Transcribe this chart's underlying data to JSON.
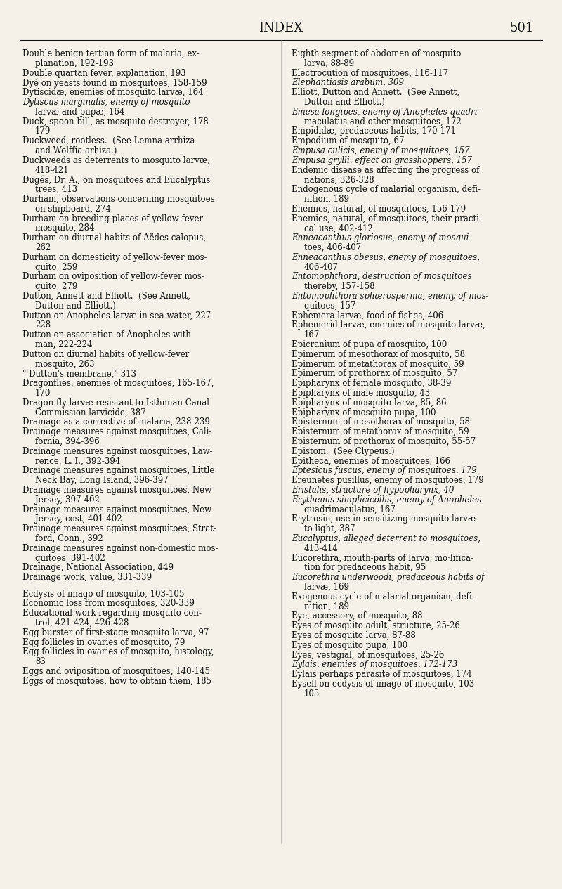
{
  "background_color": "#f5f0e8",
  "page_title": "INDEX",
  "page_number": "501",
  "title_fontsize": 13,
  "body_fontsize": 8.5,
  "left_column_entries": [
    {
      "text": "Double benign tertian form of malaria, ex-",
      "italic": false,
      "indent": false
    },
    {
      "text": "planation, 192-193",
      "italic": false,
      "indent": true
    },
    {
      "text": "Double quartan fever, explanation, 193",
      "italic": false,
      "indent": false
    },
    {
      "text": "Dyé on yeasts found in mosquitoes, 158-159",
      "italic": false,
      "indent": false
    },
    {
      "text": "Dytiscidæ, enemies of mosquito larvæ, 164",
      "italic": false,
      "indent": false
    },
    {
      "text": "Dytiscus marginalis, enemy of mosquito",
      "italic": true,
      "indent": false
    },
    {
      "text": "larvæ and pupæ, 164",
      "italic": false,
      "indent": true
    },
    {
      "text": "Duck, spoon-bill, as mosquito destroyer, 178-",
      "italic": false,
      "indent": false
    },
    {
      "text": "179",
      "italic": false,
      "indent": true
    },
    {
      "text": "Duckweed, rootless.  (See Lemna arrhiza",
      "italic": false,
      "indent": false
    },
    {
      "text": "and Wolffia arhiza.)",
      "italic": false,
      "indent": true
    },
    {
      "text": "Duckweeds as deterrents to mosquito larvæ,",
      "italic": false,
      "indent": false
    },
    {
      "text": "418-421",
      "italic": false,
      "indent": true
    },
    {
      "text": "Dugés, Dr. A., on mosquitoes and Eucalyptus",
      "italic": false,
      "indent": false
    },
    {
      "text": "trees, 413",
      "italic": false,
      "indent": true
    },
    {
      "text": "Durham, observations concerning mosquitoes",
      "italic": false,
      "indent": false
    },
    {
      "text": "on shipboard, 274",
      "italic": false,
      "indent": true
    },
    {
      "text": "Durham on breeding places of yellow-fever",
      "italic": false,
      "indent": false
    },
    {
      "text": "mosquito, 284",
      "italic": false,
      "indent": true
    },
    {
      "text": "Durham on diurnal habits of Aëdes calopus,",
      "italic": false,
      "indent": false
    },
    {
      "text": "262",
      "italic": false,
      "indent": true
    },
    {
      "text": "Durham on domesticity of yellow-fever mos-",
      "italic": false,
      "indent": false
    },
    {
      "text": "quito, 259",
      "italic": false,
      "indent": true
    },
    {
      "text": "Durham on oviposition of yellow-fever mos-",
      "italic": false,
      "indent": false
    },
    {
      "text": "quito, 279",
      "italic": false,
      "indent": true
    },
    {
      "text": "Dutton, Annett and Elliott.  (See Annett,",
      "italic": false,
      "indent": false
    },
    {
      "text": "Dutton and Elliott.)",
      "italic": false,
      "indent": true
    },
    {
      "text": "Dutton on Anopheles larvæ in sea-water, 227-",
      "italic": false,
      "indent": false
    },
    {
      "text": "228",
      "italic": false,
      "indent": true
    },
    {
      "text": "Dutton on association of Anopheles with",
      "italic": false,
      "indent": false
    },
    {
      "text": "man, 222-224",
      "italic": false,
      "indent": true
    },
    {
      "text": "Dutton on diurnal habits of yellow-fever",
      "italic": false,
      "indent": false
    },
    {
      "text": "mosquito, 263",
      "italic": false,
      "indent": true
    },
    {
      "text": "\" Dutton's membrane,\" 313",
      "italic": false,
      "indent": false
    },
    {
      "text": "Dragonflies, enemies of mosquitoes, 165-167,",
      "italic": false,
      "indent": false
    },
    {
      "text": "170",
      "italic": false,
      "indent": true
    },
    {
      "text": "Dragon-fly larvæ resistant to Isthmian Canal",
      "italic": false,
      "indent": false
    },
    {
      "text": "Commission larvicide, 387",
      "italic": false,
      "indent": true
    },
    {
      "text": "Drainage as a corrective of malaria, 238-239",
      "italic": false,
      "indent": false
    },
    {
      "text": "Drainage measures against mosquitoes, Cali-",
      "italic": false,
      "indent": false
    },
    {
      "text": "fornia, 394-396",
      "italic": false,
      "indent": true
    },
    {
      "text": "Drainage measures against mosquitoes, Law-",
      "italic": false,
      "indent": false
    },
    {
      "text": "rence, L. I., 392-394",
      "italic": false,
      "indent": true
    },
    {
      "text": "Drainage measures against mosquitoes, Little",
      "italic": false,
      "indent": false
    },
    {
      "text": "Neck Bay, Long Island, 396-397",
      "italic": false,
      "indent": true
    },
    {
      "text": "Drainage measures against mosquitoes, New",
      "italic": false,
      "indent": false
    },
    {
      "text": "Jersey, 397-402",
      "italic": false,
      "indent": true
    },
    {
      "text": "Drainage measures against mosquitoes, New",
      "italic": false,
      "indent": false
    },
    {
      "text": "Jersey, cost, 401-402",
      "italic": false,
      "indent": true
    },
    {
      "text": "Drainage measures against mosquitoes, Strat-",
      "italic": false,
      "indent": false
    },
    {
      "text": "ford, Conn., 392",
      "italic": false,
      "indent": true
    },
    {
      "text": "Drainage measures against non-domestic mos-",
      "italic": false,
      "indent": false
    },
    {
      "text": "quitoes, 391-402",
      "italic": false,
      "indent": true
    },
    {
      "text": "Drainage, National Association, 449",
      "italic": false,
      "indent": false
    },
    {
      "text": "Drainage work, value, 331-339",
      "italic": false,
      "indent": false
    },
    {
      "text": "",
      "italic": false,
      "indent": false
    },
    {
      "text": "Ecdysis of imago of mosquito, 103-105",
      "italic": false,
      "indent": false
    },
    {
      "text": "Economic loss from mosquitoes, 320-339",
      "italic": false,
      "indent": false
    },
    {
      "text": "Educational work regarding mosquito con-",
      "italic": false,
      "indent": false
    },
    {
      "text": "trol, 421-424, 426-428",
      "italic": false,
      "indent": true
    },
    {
      "text": "Egg burster of first-stage mosquito larva, 97",
      "italic": false,
      "indent": false
    },
    {
      "text": "Egg follicles in ovaries of mosquito, 79",
      "italic": false,
      "indent": false
    },
    {
      "text": "Egg follicles in ovaries of mosquito, histology,",
      "italic": false,
      "indent": false
    },
    {
      "text": "83",
      "italic": false,
      "indent": true
    },
    {
      "text": "Eggs and oviposition of mosquitoes, 140-145",
      "italic": false,
      "indent": false
    },
    {
      "text": "Eggs of mosquitoes, how to obtain them, 185",
      "italic": false,
      "indent": false
    }
  ],
  "right_column_entries": [
    {
      "text": "Eighth segment of abdomen of mosquito",
      "italic": false,
      "indent": false
    },
    {
      "text": "larva, 88-89",
      "italic": false,
      "indent": true
    },
    {
      "text": "Electrocution of mosquitoes, 116-117",
      "italic": false,
      "indent": false
    },
    {
      "text": "Elephantiasis arabum, 309",
      "italic": true,
      "indent": false
    },
    {
      "text": "Elliott, Dutton and Annett.  (See Annett,",
      "italic": false,
      "indent": false
    },
    {
      "text": "Dutton and Elliott.)",
      "italic": false,
      "indent": true
    },
    {
      "text": "Emesa longipes, enemy of Anopheles quadri-",
      "italic": true,
      "indent": false
    },
    {
      "text": "maculatus and other mosquitoes, 172",
      "italic": false,
      "indent": true
    },
    {
      "text": "Empididæ, predaceous habits, 170-171",
      "italic": false,
      "indent": false
    },
    {
      "text": "Empodium of mosquito, 67",
      "italic": false,
      "indent": false
    },
    {
      "text": "Empusa culicis, enemy of mosquitoes, 157",
      "italic": true,
      "indent": false
    },
    {
      "text": "Empusa grylli, effect on grasshoppers, 157",
      "italic": true,
      "indent": false
    },
    {
      "text": "Endemic disease as affecting the progress of",
      "italic": false,
      "indent": false
    },
    {
      "text": "nations, 326-328",
      "italic": false,
      "indent": true
    },
    {
      "text": "Endogenous cycle of malarial organism, defi-",
      "italic": false,
      "indent": false
    },
    {
      "text": "nition, 189",
      "italic": false,
      "indent": true
    },
    {
      "text": "Enemies, natural, of mosquitoes, 156-179",
      "italic": false,
      "indent": false
    },
    {
      "text": "Enemies, natural, of mosquitoes, their practi-",
      "italic": false,
      "indent": false
    },
    {
      "text": "cal use, 402-412",
      "italic": false,
      "indent": true
    },
    {
      "text": "Enneacanthus gloriosus, enemy of mosqui-",
      "italic": true,
      "indent": false
    },
    {
      "text": "toes, 406-407",
      "italic": false,
      "indent": true
    },
    {
      "text": "Enneacanthus obesus, enemy of mosquitoes,",
      "italic": true,
      "indent": false
    },
    {
      "text": "406-407",
      "italic": false,
      "indent": true
    },
    {
      "text": "Entomophthora, destruction of mosquitoes",
      "italic": true,
      "indent": false
    },
    {
      "text": "thereby, 157-158",
      "italic": false,
      "indent": true
    },
    {
      "text": "Entomophthora sphærosperma, enemy of mos-",
      "italic": true,
      "indent": false
    },
    {
      "text": "quitoes, 157",
      "italic": false,
      "indent": true
    },
    {
      "text": "Ephemera larvæ, food of fishes, 406",
      "italic": false,
      "indent": false
    },
    {
      "text": "Ephemerid larvæ, enemies of mosquito larvæ,",
      "italic": false,
      "indent": false
    },
    {
      "text": "167",
      "italic": false,
      "indent": true
    },
    {
      "text": "Epicranium of pupa of mosquito, 100",
      "italic": false,
      "indent": false
    },
    {
      "text": "Epimerum of mesothorax of mosquito, 58",
      "italic": false,
      "indent": false
    },
    {
      "text": "Epimerum of metathorax of mosquito, 59",
      "italic": false,
      "indent": false
    },
    {
      "text": "Epimerum of prothorax of mosquito, 57",
      "italic": false,
      "indent": false
    },
    {
      "text": "Epipharynx of female mosquito, 38-39",
      "italic": false,
      "indent": false
    },
    {
      "text": "Epipharynx of male mosquito, 43",
      "italic": false,
      "indent": false
    },
    {
      "text": "Epipharynx of mosquito larva, 85, 86",
      "italic": false,
      "indent": false
    },
    {
      "text": "Epipharynx of mosquito pupa, 100",
      "italic": false,
      "indent": false
    },
    {
      "text": "Episternum of mesothorax of mosquito, 58",
      "italic": false,
      "indent": false
    },
    {
      "text": "Episternum of metathorax of mosquito, 59",
      "italic": false,
      "indent": false
    },
    {
      "text": "Episternum of prothorax of mosquito, 55-57",
      "italic": false,
      "indent": false
    },
    {
      "text": "Epistom.  (See Clypeus.)",
      "italic": false,
      "indent": false
    },
    {
      "text": "Epitheca, enemies of mosquitoes, 166",
      "italic": false,
      "indent": false
    },
    {
      "text": "Eptesicus fuscus, enemy of mosquitoes, 179",
      "italic": true,
      "indent": false
    },
    {
      "text": "Ereunetes pusillus, enemy of mosquitoes, 179",
      "italic": false,
      "indent": false
    },
    {
      "text": "Eristalis, structure of hypopharynx, 40",
      "italic": true,
      "indent": false
    },
    {
      "text": "Erythemis simplicicollis, enemy of Anopheles",
      "italic": true,
      "indent": false
    },
    {
      "text": "quadrimaculatus, 167",
      "italic": false,
      "indent": true
    },
    {
      "text": "Erytrosin, use in sensitizing mosquito larvæ",
      "italic": false,
      "indent": false
    },
    {
      "text": "to light, 387",
      "italic": false,
      "indent": true
    },
    {
      "text": "Eucalyptus, alleged deterrent to mosquitoes,",
      "italic": true,
      "indent": false
    },
    {
      "text": "413-414",
      "italic": false,
      "indent": true
    },
    {
      "text": "Eucorethra, mouth-parts of larva, mo·lifica-",
      "italic": false,
      "indent": false
    },
    {
      "text": "tion for predaceous habit, 95",
      "italic": false,
      "indent": true
    },
    {
      "text": "Eucorethra underwoodi, predaceous habits of",
      "italic": true,
      "indent": false
    },
    {
      "text": "larvæ, 169",
      "italic": false,
      "indent": true
    },
    {
      "text": "Exogenous cycle of malarial organism, defi-",
      "italic": false,
      "indent": false
    },
    {
      "text": "nition, 189",
      "italic": false,
      "indent": true
    },
    {
      "text": "Eye, accessory, of mosquito, 88",
      "italic": false,
      "indent": false
    },
    {
      "text": "Eyes of mosquito adult, structure, 25-26",
      "italic": false,
      "indent": false
    },
    {
      "text": "Eyes of mosquito larva, 87-88",
      "italic": false,
      "indent": false
    },
    {
      "text": "Eyes of mosquito pupa, 100",
      "italic": false,
      "indent": false
    },
    {
      "text": "Eyes, vestigial, of mosquitoes, 25-26",
      "italic": false,
      "indent": false
    },
    {
      "text": "Eylais, enemies of mosquitoes, 172-173",
      "italic": true,
      "indent": false
    },
    {
      "text": "Eylais perhaps parasite of mosquitoes, 174",
      "italic": false,
      "indent": false
    },
    {
      "text": "Eysell on ecdysis of imago of mosquito, 103-",
      "italic": false,
      "indent": false
    },
    {
      "text": "105",
      "italic": false,
      "indent": true
    }
  ]
}
